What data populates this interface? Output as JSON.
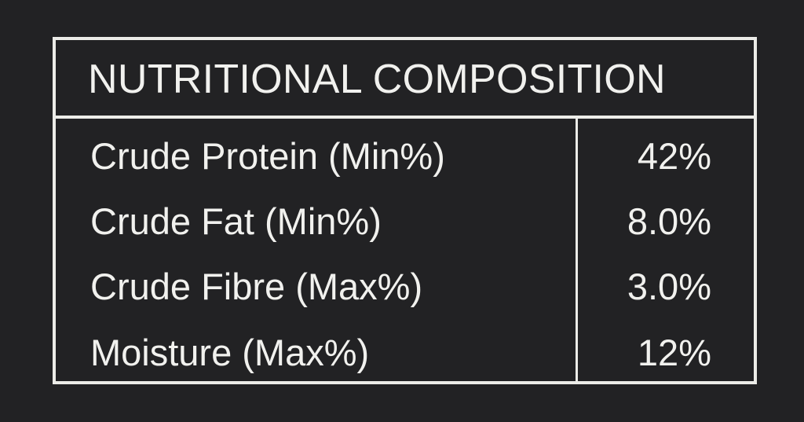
{
  "title": "NUTRITIONAL COMPOSITION",
  "rows": [
    {
      "label": "Crude Protein (Min%)",
      "value": "42%"
    },
    {
      "label": "Crude Fat (Min%)",
      "value": "8.0%"
    },
    {
      "label": "Crude Fibre (Max%)",
      "value": "3.0%"
    },
    {
      "label": "Moisture (Max%)",
      "value": "12%"
    }
  ],
  "colors": {
    "background": "#222224",
    "text": "#f1f1ee"
  }
}
